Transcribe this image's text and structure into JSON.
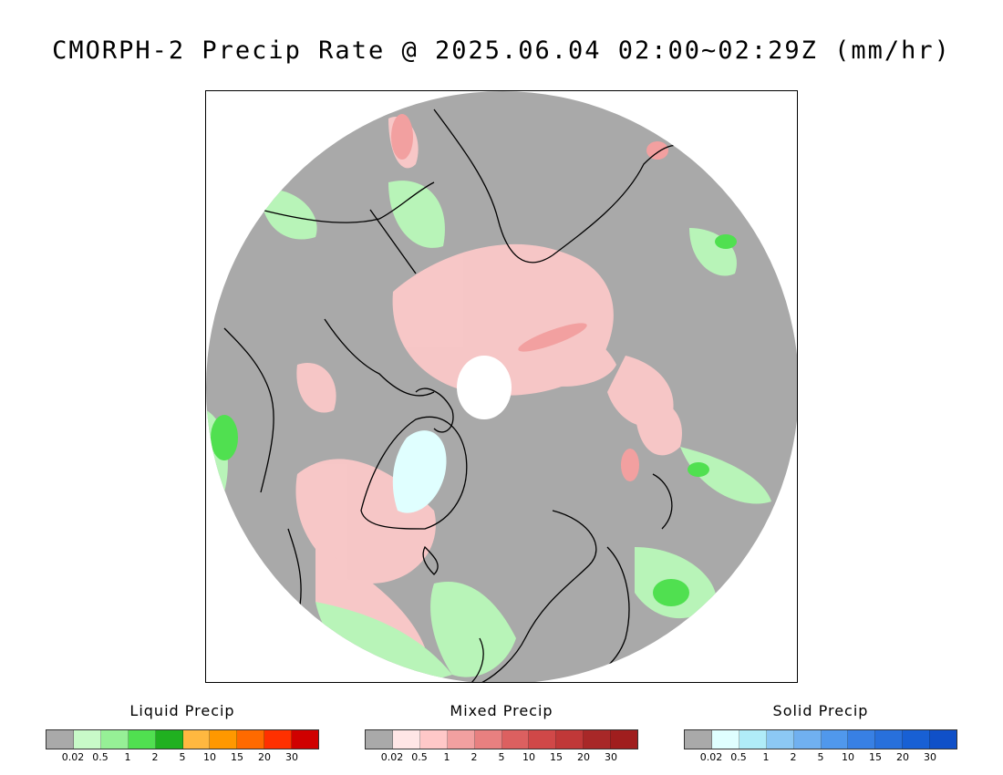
{
  "title": "CMORPH-2 Precip Rate @ 2025.06.04 02:00~02:29Z (mm/hr)",
  "map": {
    "projection": "polar-stereographic-north",
    "ocean_color": "#a9a9a9",
    "outside_color": "#ffffff",
    "coast_color": "#000000"
  },
  "legends": [
    {
      "id": "liquid",
      "label": "Liquid Precip",
      "colors": [
        "#a9a9a9",
        "#c8fac8",
        "#96f096",
        "#50e050",
        "#20b020",
        "#ffb840",
        "#ff9800",
        "#ff6a00",
        "#ff3000",
        "#d00000"
      ],
      "ticks": [
        "0.02",
        "0.5",
        "1",
        "2",
        "5",
        "10",
        "15",
        "20",
        "30"
      ]
    },
    {
      "id": "mixed",
      "label": "Mixed Precip",
      "colors": [
        "#a9a9a9",
        "#ffe6e6",
        "#ffc8c8",
        "#f2a0a0",
        "#e88080",
        "#dc6060",
        "#d04848",
        "#c03838",
        "#a82828",
        "#a01e1e"
      ],
      "ticks": [
        "0.02",
        "0.5",
        "1",
        "2",
        "5",
        "10",
        "15",
        "20",
        "30"
      ]
    },
    {
      "id": "solid",
      "label": "Solid Precip",
      "colors": [
        "#a9a9a9",
        "#e0ffff",
        "#b0ecf8",
        "#8cc8f4",
        "#70b0f0",
        "#5098ec",
        "#3880e4",
        "#2870dc",
        "#1860d4",
        "#1050c8"
      ],
      "ticks": [
        "0.02",
        "0.5",
        "1",
        "2",
        "5",
        "10",
        "15",
        "20",
        "30"
      ]
    }
  ]
}
